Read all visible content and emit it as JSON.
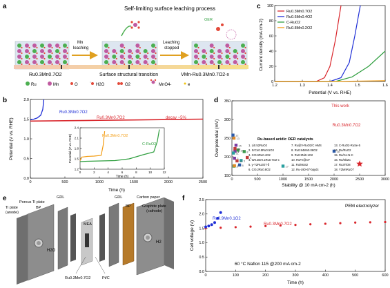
{
  "panel_a": {
    "label": "a",
    "title": "Self-limiting surface leaching process",
    "step1": "Mn",
    "step1b": "leaching",
    "step2": "Leaching",
    "step2b": "stopped",
    "oer": "OER",
    "left_caption": "Ru0.3Mn0.7O2",
    "mid_caption": "Surface structural transition",
    "right_caption": "VMn-Ru0.3Mn0.7O2-x",
    "legend": [
      "Ru",
      "Mn",
      "O",
      "H2O",
      "O2",
      "MnO4-",
      "e"
    ],
    "colors": {
      "ru": "#4caf50",
      "mn": "#c05aa0",
      "o": "#e34a3a",
      "accent": "#f5b041"
    }
  },
  "panel_b": {
    "label": "b",
    "ylabel": "Potential (V vs. RHE)",
    "xlabel": "Time (h)",
    "series_ru": "Ru0.3Mn0.7O2",
    "series_rumn": "Ru0.3Mn0.7O2",
    "decay": "decay ~5%",
    "inset_series_a": "Ru0.3Mn0.7O2",
    "inset_series_b": "C-RuO2",
    "inset_xlabel": "Time (h)",
    "inset_ylabel": "Potential (V vs. RHE)"
  },
  "panel_c": {
    "label": "c",
    "xlabel": "Potential (V vs. RHE)",
    "ylabel": "Current density (mA cm-2)",
    "legend": [
      "Ru0.3Mn0.7O2",
      "Ru0.6Mn0.4O2",
      "C-RuO2",
      "Ru0.8Mn0.2O2"
    ]
  },
  "panel_d": {
    "label": "d",
    "xlabel": "Stability @ 10 mA cm-2 (h)",
    "ylabel": "Overpotential (mV)",
    "this_work": "This work",
    "this_work_label": "Ru0.3Mn0.7O2",
    "box_title": "Ru-based acidic OER catalysts",
    "catalysts": [
      "1. Li0.52RuO2",
      "2. SrCo0.5Ru0.5O3",
      "3. Cr0.6Ru0.4O2",
      "4. W0.2Er0.1Ru0.7O2-x",
      "5. y-Y2Ru2O7-δ",
      "6. Cr0.2Ru0.8O2",
      "7. Ru@V-RuO2/C HMS",
      "8. Ru0.94Mn0.06O2",
      "9. Ru0.9Ni0.1O2",
      "10. RuFe@CF",
      "11. Ru/MoS2",
      "12. Ru-UiO-67-bpydc",
      "13. C-RuO2-RuSe-5",
      "14. Ru/RuO2",
      "15. Ru/Co-N-C",
      "16. Ru/Nb2C",
      "17. Ru3TiO8",
      "18. Y2MnRuO7"
    ]
  },
  "panel_e": {
    "label": "e",
    "porous_ti": "Porous Ti plate",
    "gdl_left": "GDL",
    "bp_left": "BP",
    "ti_plate": "Ti plate",
    "anode": "(anode)",
    "mea": "MEA",
    "gdl_right": "GDL",
    "carbon_paper": "Carbon paper",
    "bp_right": "BP",
    "graphite": "Graphite plate",
    "cathode": "(cathode)",
    "h2o": "H2O",
    "h2": "H2",
    "bottom_left": "Ru0.3Mn0.7O2",
    "bottom_right": "Pt/C"
  },
  "panel_f": {
    "label": "f",
    "ylabel": "Cell voltage (V)",
    "xlabel": "Time (h)",
    "title": "PEM electrolyzer",
    "series_a": "Ru0.9Mn0.1O2",
    "series_b": "Ru0.3Mn0.7O2",
    "conditions": "60 °C   Nafion 115   @200 mA cm-2"
  },
  "chart_data": [
    {
      "type": "line",
      "panel": "b",
      "x_range": [
        0,
        2500
      ],
      "y_range": [
        0.0,
        2.0
      ],
      "x_ticks": [
        0,
        500,
        1000,
        1500,
        2000,
        2500
      ],
      "y_ticks": [
        0.0,
        0.5,
        1.0,
        1.5,
        2.0
      ],
      "series": [
        {
          "name": "Ru0.3Mn0.7O2",
          "color": "#d9262c",
          "x": [
            0,
            500,
            1000,
            1500,
            2000,
            2500
          ],
          "y": [
            1.45,
            1.46,
            1.47,
            1.48,
            1.49,
            1.5
          ]
        },
        {
          "name": "Ru0.3Mn0.7O2",
          "color": "#1f2fd6",
          "x": [
            0,
            50,
            100,
            150,
            180,
            195
          ],
          "y": [
            1.48,
            1.5,
            1.53,
            1.6,
            1.75,
            2.0
          ]
        }
      ]
    },
    {
      "type": "line",
      "panel": "b-inset",
      "x_range": [
        0,
        12
      ],
      "y_range": [
        1.2,
        2.4
      ],
      "x_ticks": [
        0,
        2,
        4,
        6,
        8,
        10,
        12
      ],
      "y_ticks": [
        1.2,
        1.5,
        1.8,
        2.1,
        2.4
      ],
      "series": [
        {
          "name": "Ru0.3Mn0.7O2",
          "color": "#f39c12",
          "x": [
            0,
            0.2,
            1,
            2,
            3,
            3.3,
            3.5
          ],
          "y": [
            1.45,
            1.55,
            1.57,
            1.58,
            1.6,
            1.9,
            2.3
          ]
        },
        {
          "name": "C-RuO2",
          "color": "#2e9e3e",
          "x": [
            0,
            1,
            3,
            5,
            7,
            9,
            10.5,
            11,
            11.3
          ],
          "y": [
            1.42,
            1.43,
            1.44,
            1.45,
            1.5,
            1.62,
            1.7,
            2.0,
            2.35
          ]
        }
      ]
    },
    {
      "type": "line",
      "panel": "c",
      "x_range": [
        1.2,
        1.6
      ],
      "y_range": [
        0,
        100
      ],
      "x_ticks": [
        1.2,
        1.3,
        1.4,
        1.5,
        1.6
      ],
      "y_ticks": [
        0,
        20,
        40,
        60,
        80,
        100
      ],
      "series": [
        {
          "name": "Ru0.3Mn0.7O2",
          "color": "#d9262c",
          "x": [
            1.2,
            1.35,
            1.38,
            1.4,
            1.42,
            1.44
          ],
          "y": [
            0,
            0,
            5,
            20,
            55,
            100
          ]
        },
        {
          "name": "Ru0.6Mn0.4O2",
          "color": "#1f2fd6",
          "x": [
            1.2,
            1.4,
            1.44,
            1.47,
            1.49,
            1.51
          ],
          "y": [
            0,
            0,
            5,
            25,
            60,
            100
          ]
        },
        {
          "name": "C-RuO2",
          "color": "#2e9e3e",
          "x": [
            1.2,
            1.42,
            1.48,
            1.54,
            1.6
          ],
          "y": [
            0,
            0,
            6,
            20,
            40
          ]
        },
        {
          "name": "Ru0.8Mn0.2O2",
          "color": "#f39c12",
          "x": [
            1.2,
            1.4,
            1.5,
            1.6
          ],
          "y": [
            0,
            0,
            0.5,
            1
          ]
        }
      ]
    },
    {
      "type": "scatter",
      "panel": "d",
      "x_range": [
        0,
        3000
      ],
      "y_range": [
        150,
        350
      ],
      "x_ticks": [
        0,
        500,
        1000,
        1500,
        2000,
        2500,
        3000
      ],
      "y_ticks": [
        150,
        200,
        250,
        300,
        350
      ],
      "points": [
        {
          "x": 2500,
          "y": 181,
          "label": "Ru0.3Mn0.7O2",
          "star": true
        },
        {
          "x": 60,
          "y": 215,
          "label": "1"
        },
        {
          "x": 40,
          "y": 175,
          "label": "2"
        },
        {
          "x": 50,
          "y": 196,
          "label": "3"
        },
        {
          "x": 300,
          "y": 198,
          "label": "4"
        },
        {
          "x": 180,
          "y": 190,
          "label": "5"
        },
        {
          "x": 150,
          "y": 178,
          "label": "6"
        },
        {
          "x": 50,
          "y": 176,
          "label": "7"
        },
        {
          "x": 240,
          "y": 214,
          "label": "8"
        },
        {
          "x": 60,
          "y": 215,
          "label": "9"
        },
        {
          "x": 100,
          "y": 189,
          "label": "10"
        },
        {
          "x": 30,
          "y": 210,
          "label": "11"
        },
        {
          "x": 20,
          "y": 258,
          "label": "12"
        },
        {
          "x": 40,
          "y": 250,
          "label": "13"
        },
        {
          "x": 120,
          "y": 218,
          "label": "14"
        },
        {
          "x": 80,
          "y": 231,
          "label": "15"
        },
        {
          "x": 60,
          "y": 222,
          "label": "16"
        },
        {
          "x": 1000,
          "y": 175,
          "label": "17"
        },
        {
          "x": 2000,
          "y": 215,
          "label": "18"
        }
      ]
    },
    {
      "type": "scatter",
      "panel": "f",
      "x_range": [
        0,
        600
      ],
      "y_range": [
        0.0,
        2.5
      ],
      "x_ticks": [
        0,
        100,
        200,
        300,
        400,
        500,
        600
      ],
      "y_ticks": [
        0.0,
        0.5,
        1.0,
        1.5,
        2.0,
        2.5
      ],
      "series": [
        {
          "name": "Ru0.3Mn0.7O2",
          "color": "#d9262c",
          "x": [
            0,
            50,
            100,
            150,
            200,
            250,
            300,
            350,
            400,
            450,
            500,
            550,
            600
          ],
          "y": [
            1.5,
            1.52,
            1.54,
            1.56,
            1.58,
            1.6,
            1.62,
            1.64,
            1.66,
            1.68,
            1.7,
            1.71,
            1.72
          ]
        },
        {
          "name": "Ru0.9Mn0.1O2",
          "color": "#1f2fd6",
          "x": [
            0,
            10,
            20,
            30,
            40,
            50
          ],
          "y": [
            1.55,
            1.58,
            1.63,
            1.7,
            1.85,
            2.05
          ]
        }
      ]
    }
  ]
}
